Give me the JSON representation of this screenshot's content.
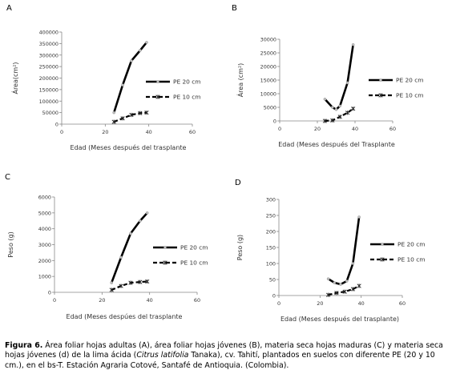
{
  "chart_data": [
    {
      "type": "line",
      "panel_letter": "A",
      "xlabel": "Edad (Meses después del trasplante",
      "ylabel": "Área(cm²)",
      "xlim": [
        0,
        60
      ],
      "ylim": [
        0,
        400000
      ],
      "xticks": [
        "0",
        "20",
        "40",
        "60"
      ],
      "yticks": [
        "0",
        "50000",
        "100000",
        "150000",
        "200000",
        "250000",
        "300000",
        "350000",
        "400000"
      ],
      "grid": false,
      "legend_position": "right",
      "series": [
        {
          "name": "PE 20 cm",
          "style": "solid",
          "x": [
            24,
            28,
            32,
            36,
            39
          ],
          "y": [
            50000,
            170000,
            275000,
            320000,
            355000
          ]
        },
        {
          "name": "PE 10 cm",
          "style": "dashed",
          "x": [
            24,
            28,
            32,
            36,
            39
          ],
          "y": [
            10000,
            25000,
            40000,
            48000,
            50000
          ]
        }
      ]
    },
    {
      "type": "line",
      "panel_letter": "B",
      "xlabel": "Edad (Meses después del Trasplante",
      "ylabel": "Área (cm²)",
      "xlim": [
        0,
        60
      ],
      "ylim": [
        0,
        30000
      ],
      "xticks": [
        "0",
        "20",
        "40",
        "60"
      ],
      "yticks": [
        "0",
        "5000",
        "10000",
        "15000",
        "20000",
        "25000",
        "30000"
      ],
      "grid": false,
      "legend_position": "right",
      "series": [
        {
          "name": "PE 20 cm",
          "style": "solid",
          "x": [
            24,
            28,
            30,
            32,
            36,
            39
          ],
          "y": [
            8000,
            5000,
            4200,
            5500,
            14000,
            28000
          ]
        },
        {
          "name": "PE 10 cm",
          "style": "dashed",
          "x": [
            24,
            28,
            32,
            36,
            39
          ],
          "y": [
            0,
            200,
            1500,
            3000,
            4500
          ]
        }
      ]
    },
    {
      "type": "line",
      "panel_letter": "C",
      "xlabel": "Edad (Meses despúes del trasplante",
      "ylabel": "Peso (g)",
      "xlim": [
        0,
        60
      ],
      "ylim": [
        0,
        6000
      ],
      "xticks": [
        "0",
        "20",
        "40",
        "60"
      ],
      "yticks": [
        "0",
        "1000",
        "2000",
        "3000",
        "4000",
        "5000",
        "6000"
      ],
      "grid": false,
      "legend_position": "right",
      "series": [
        {
          "name": "PE 20 cm",
          "style": "solid",
          "x": [
            24,
            28,
            32,
            36,
            39
          ],
          "y": [
            600,
            2200,
            3700,
            4500,
            5000
          ]
        },
        {
          "name": "PE 10 cm",
          "style": "dashed",
          "x": [
            24,
            28,
            32,
            36,
            39
          ],
          "y": [
            150,
            400,
            600,
            650,
            680
          ]
        }
      ]
    },
    {
      "type": "line",
      "panel_letter": "D",
      "xlabel": "Edad (Meses después del trasplante)",
      "ylabel": "Peso (g)",
      "xlim": [
        0,
        60
      ],
      "ylim": [
        0,
        300
      ],
      "xticks": [
        "0",
        "20",
        "40",
        "60"
      ],
      "yticks": [
        "0",
        "50",
        "100",
        "150",
        "200",
        "250",
        "300"
      ],
      "grid": false,
      "legend_position": "right",
      "series": [
        {
          "name": "PE 20 cm",
          "style": "solid",
          "x": [
            24,
            27,
            30,
            33,
            36,
            39
          ],
          "y": [
            52,
            40,
            35,
            45,
            100,
            245
          ]
        },
        {
          "name": "PE 10 cm",
          "style": "dashed",
          "x": [
            24,
            28,
            32,
            36,
            39
          ],
          "y": [
            2,
            8,
            12,
            20,
            30
          ]
        }
      ]
    }
  ],
  "caption": {
    "label": "Figura 6.",
    "part1": " Área foliar hojas adultas (A), área foliar hojas jóvenes (B), materia seca hojas maduras (C) y materia seca hojas jóvenes (d) de la lima ácida (",
    "species": "Citrus latifolia",
    "part2": " Tanaka), cv. Tahití, plantados en suelos con diferente PE (20 y 10 cm.), en el bs-T. Estación Agraria Cotové, Santafé de Antioquia. (Colombia)."
  }
}
